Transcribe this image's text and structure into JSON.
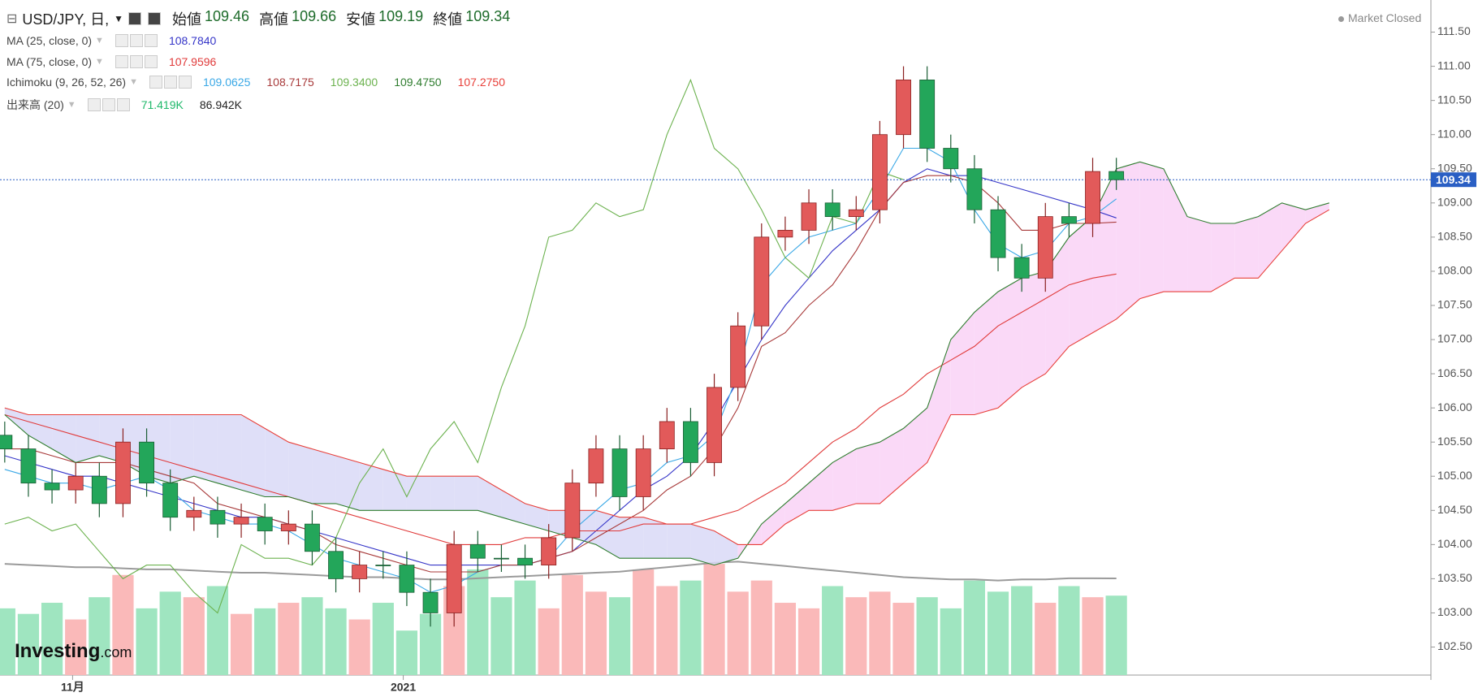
{
  "chart_data": {
    "type": "candlestick",
    "title": "USD/JPY, 日,",
    "ohlc_labels": [
      {
        "label": "始値",
        "value": "109.46"
      },
      {
        "label": "高値",
        "value": "109.66"
      },
      {
        "label": "安値",
        "value": "109.19"
      },
      {
        "label": "終値",
        "value": "109.34"
      }
    ],
    "status": "Market Closed",
    "logo": "Investing",
    "logo_suffix": ".com",
    "up_color": "#e25a5a",
    "down_color": "#23a65a",
    "volume_up_color": "#fab9b9",
    "volume_down_color": "#9fe5c0",
    "price_line_color": "#2a5fc4",
    "x": [
      0,
      1,
      2,
      3,
      4,
      5,
      6,
      7,
      8,
      9,
      10,
      11,
      12,
      13,
      14,
      15,
      16,
      17,
      18,
      19,
      20,
      21,
      22,
      23,
      24,
      25,
      26,
      27,
      28,
      29,
      30,
      31,
      32,
      33,
      34,
      35,
      36,
      37,
      38,
      39,
      40,
      41,
      42,
      43,
      44,
      45,
      46,
      47,
      48,
      49,
      50,
      51,
      52,
      53,
      54,
      55,
      56
    ],
    "xlim": [
      -0.2,
      60.3
    ],
    "xticks": [
      {
        "value": 2.87,
        "label": "11月"
      },
      {
        "value": 16.85,
        "label": "2021"
      }
    ],
    "ylim": [
      102.09,
      111.97
    ],
    "yticks": [
      {
        "value": 102.5,
        "label": "102.50"
      },
      {
        "value": 103,
        "label": "103.00"
      },
      {
        "value": 103.5,
        "label": "103.50"
      },
      {
        "value": 104,
        "label": "104.00"
      },
      {
        "value": 104.5,
        "label": "104.50"
      },
      {
        "value": 105,
        "label": "105.00"
      },
      {
        "value": 105.5,
        "label": "105.50"
      },
      {
        "value": 106,
        "label": "106.00"
      },
      {
        "value": 106.5,
        "label": "106.50"
      },
      {
        "value": 107,
        "label": "107.00"
      },
      {
        "value": 107.5,
        "label": "107.50"
      },
      {
        "value": 108,
        "label": "108.00"
      },
      {
        "value": 108.5,
        "label": "108.50"
      },
      {
        "value": 109,
        "label": "109.00"
      },
      {
        "value": 109.5,
        "label": "109.50"
      },
      {
        "value": 110,
        "label": "110.00"
      },
      {
        "value": 110.5,
        "label": "110.50"
      },
      {
        "value": 111,
        "label": "111.00"
      },
      {
        "value": 111.5,
        "label": "111.50"
      }
    ],
    "open": [
      105.6,
      105.4,
      104.9,
      104.8,
      105.0,
      104.6,
      105.5,
      104.9,
      104.4,
      104.5,
      104.3,
      104.4,
      104.2,
      104.3,
      103.9,
      103.5,
      103.7,
      103.7,
      103.3,
      103.0,
      104.0,
      103.8,
      103.8,
      103.7,
      104.1,
      104.9,
      105.4,
      104.7,
      105.4,
      105.8,
      105.2,
      106.3,
      107.2,
      108.5,
      108.6,
      109.0,
      108.8,
      108.9,
      110.0,
      110.8,
      109.8,
      109.5,
      108.9,
      108.2,
      107.9,
      108.8,
      108.7,
      109.46,
      null,
      null,
      null,
      null,
      null,
      null,
      null,
      null,
      null
    ],
    "high": [
      105.8,
      105.6,
      105.1,
      105.2,
      105.2,
      105.7,
      105.7,
      105.1,
      104.7,
      104.7,
      104.6,
      104.6,
      104.5,
      104.5,
      104.1,
      103.9,
      103.9,
      103.9,
      103.5,
      104.2,
      104.2,
      104.0,
      104.0,
      104.3,
      105.1,
      105.6,
      105.6,
      105.6,
      106.0,
      106.0,
      106.5,
      107.4,
      108.7,
      108.8,
      109.2,
      109.2,
      109.1,
      110.2,
      111.0,
      111.0,
      110.0,
      109.7,
      109.1,
      108.4,
      109.0,
      109.0,
      109.66,
      109.66,
      null,
      null,
      null,
      null,
      null,
      null,
      null,
      null,
      null
    ],
    "low": [
      105.2,
      104.7,
      104.6,
      104.6,
      104.4,
      104.4,
      104.7,
      104.2,
      104.2,
      104.1,
      104.1,
      104.0,
      104.0,
      103.7,
      103.3,
      103.3,
      103.5,
      103.1,
      102.8,
      102.8,
      103.6,
      103.6,
      103.5,
      103.5,
      103.9,
      104.7,
      104.5,
      104.5,
      105.2,
      105.0,
      105.0,
      106.1,
      107.0,
      108.3,
      108.4,
      108.6,
      108.6,
      108.7,
      109.8,
      109.6,
      109.3,
      108.7,
      108.0,
      107.7,
      107.7,
      108.5,
      108.5,
      109.19,
      null,
      null,
      null,
      null,
      null,
      null,
      null,
      null,
      null
    ],
    "close": [
      105.4,
      104.9,
      104.8,
      105.0,
      104.6,
      105.5,
      104.9,
      104.4,
      104.5,
      104.3,
      104.4,
      104.2,
      104.3,
      103.9,
      103.5,
      103.7,
      103.7,
      103.3,
      103.0,
      104.0,
      103.8,
      103.8,
      103.7,
      104.1,
      104.9,
      105.4,
      104.7,
      105.4,
      105.8,
      105.2,
      106.3,
      107.2,
      108.5,
      108.6,
      109.0,
      108.8,
      108.9,
      110.0,
      110.8,
      109.8,
      109.5,
      108.9,
      108.2,
      107.9,
      108.8,
      108.7,
      109.46,
      109.34,
      null,
      null,
      null,
      null,
      null,
      null,
      null,
      null,
      null
    ],
    "volume_lim": [
      0,
      607
    ],
    "volume": [
      60,
      55,
      65,
      50,
      70,
      90,
      60,
      75,
      70,
      80,
      55,
      60,
      65,
      70,
      60,
      50,
      65,
      40,
      55,
      80,
      95,
      70,
      85,
      60,
      90,
      75,
      70,
      95,
      80,
      85,
      100,
      75,
      85,
      65,
      60,
      80,
      70,
      75,
      65,
      70,
      60,
      85,
      75,
      80,
      65,
      80,
      70,
      71.419,
      null,
      null,
      null,
      null,
      null,
      null,
      null,
      null,
      null
    ],
    "volume_ma": [
      100,
      99,
      98,
      97,
      97,
      96,
      95,
      95,
      94,
      93,
      92,
      92,
      91,
      90,
      89,
      88,
      88,
      87,
      86,
      86,
      87,
      88,
      89,
      90,
      91,
      92,
      93,
      95,
      97,
      99,
      101,
      102,
      100,
      98,
      96,
      94,
      92,
      90,
      88,
      87,
      86,
      86,
      85,
      86,
      86,
      87,
      87,
      86.942,
      null,
      null,
      null,
      null,
      null,
      null,
      null,
      null,
      null
    ],
    "volume_ma_color": "#9a9a9a",
    "indicators": [
      {
        "name": "MA (25, close, 0)",
        "values_text": [
          "108.7840"
        ],
        "series": [
          {
            "color": "#3535c8",
            "values": [
              105.3,
              105.2,
              105.1,
              105.0,
              105.0,
              104.9,
              104.8,
              104.7,
              104.6,
              104.5,
              104.4,
              104.4,
              104.3,
              104.2,
              104.1,
              104.0,
              103.9,
              103.8,
              103.7,
              103.7,
              103.7,
              103.7,
              103.7,
              103.8,
              103.9,
              104.2,
              104.5,
              104.8,
              105.0,
              105.3,
              105.8,
              106.4,
              107.0,
              107.5,
              107.9,
              108.3,
              108.6,
              108.9,
              109.3,
              109.5,
              109.4,
              109.4,
              109.3,
              109.2,
              109.1,
              109.0,
              108.9,
              108.78,
              null,
              null,
              null,
              null,
              null,
              null,
              null,
              null,
              null
            ]
          }
        ]
      },
      {
        "name": "MA (75, close, 0)",
        "values_text": [
          "107.9596"
        ],
        "series": [
          {
            "color": "#e03a3a",
            "values": [
              105.9,
              105.8,
              105.7,
              105.6,
              105.5,
              105.4,
              105.3,
              105.2,
              105.1,
              105.0,
              104.9,
              104.8,
              104.7,
              104.6,
              104.5,
              104.4,
              104.3,
              104.2,
              104.1,
              104.0,
              104.0,
              104.0,
              104.1,
              104.1,
              104.2,
              104.2,
              104.2,
              104.3,
              104.3,
              104.3,
              104.4,
              104.5,
              104.7,
              104.9,
              105.2,
              105.5,
              105.7,
              106.0,
              106.2,
              106.5,
              106.7,
              106.9,
              107.2,
              107.4,
              107.6,
              107.8,
              107.9,
              107.96,
              null,
              null,
              null,
              null,
              null,
              null,
              null,
              null,
              null
            ]
          }
        ]
      },
      {
        "name": "Ichimoku (9, 26, 52, 26)",
        "values_text": [
          "109.0625",
          "108.7175",
          "109.3400",
          "109.4750",
          "107.2750"
        ],
        "cloud_up": "#f9d2f6",
        "cloud_down": "#d9d9f7",
        "series": [
          {
            "color": "#3aa8e6",
            "values": [
              105.1,
              105.0,
              104.9,
              104.9,
              104.8,
              104.9,
              105.0,
              104.8,
              104.5,
              104.4,
              104.3,
              104.3,
              104.2,
              104.0,
              103.8,
              103.7,
              103.6,
              103.5,
              103.3,
              103.4,
              103.6,
              103.7,
              103.7,
              103.8,
              104.2,
              104.5,
              104.8,
              104.9,
              105.2,
              105.3,
              105.6,
              106.5,
              107.8,
              108.2,
              108.5,
              108.6,
              108.7,
              109.2,
              109.8,
              109.8,
              109.6,
              108.9,
              108.4,
              108.2,
              108.3,
              108.7,
              108.8,
              109.06,
              null,
              null,
              null,
              null,
              null,
              null,
              null,
              null,
              null
            ]
          },
          {
            "color": "#a83a3a",
            "values": [
              105.4,
              105.4,
              105.3,
              105.2,
              105.2,
              105.2,
              105.1,
              105.0,
              104.9,
              104.6,
              104.5,
              104.4,
              104.3,
              104.2,
              104.0,
              103.9,
              103.8,
              103.7,
              103.6,
              103.6,
              103.6,
              103.7,
              103.7,
              103.8,
              103.9,
              104.1,
              104.3,
              104.5,
              104.8,
              105.0,
              105.4,
              106.0,
              106.9,
              107.1,
              107.5,
              107.8,
              108.3,
              108.9,
              109.3,
              109.4,
              109.4,
              109.3,
              109.0,
              108.6,
              108.6,
              108.7,
              108.7,
              108.72,
              null,
              null,
              null,
              null,
              null,
              null,
              null,
              null,
              null
            ]
          },
          {
            "color": "#6cb24f",
            "values": [
              104.3,
              104.4,
              104.2,
              104.3,
              103.9,
              103.5,
              103.7,
              103.7,
              103.3,
              103.0,
              104.0,
              103.8,
              103.8,
              103.7,
              104.1,
              104.9,
              105.4,
              104.7,
              105.4,
              105.8,
              105.2,
              106.3,
              107.2,
              108.5,
              108.6,
              109.0,
              108.8,
              108.9,
              110.0,
              110.8,
              109.8,
              109.5,
              108.9,
              108.2,
              107.9,
              108.8,
              108.7,
              109.46,
              109.34,
              null,
              null,
              null,
              null,
              null,
              null,
              null,
              null,
              null,
              null,
              null,
              null,
              null,
              null,
              null,
              null,
              null,
              null
            ]
          },
          {
            "color": "#2f7d2f",
            "values": [
              105.9,
              105.6,
              105.4,
              105.2,
              105.3,
              105.2,
              105.0,
              104.9,
              105.0,
              104.9,
              104.8,
              104.7,
              104.7,
              104.6,
              104.6,
              104.5,
              104.5,
              104.5,
              104.5,
              104.5,
              104.5,
              104.4,
              104.3,
              104.2,
              104.1,
              104.0,
              103.8,
              103.8,
              103.8,
              103.8,
              103.7,
              103.8,
              104.3,
              104.6,
              104.9,
              105.2,
              105.4,
              105.5,
              105.7,
              106.0,
              107.0,
              107.4,
              107.7,
              107.9,
              108.0,
              108.5,
              108.8,
              109.5,
              109.6,
              109.5,
              108.8,
              108.7,
              108.7,
              108.8,
              109.0,
              108.9,
              109.0
            ]
          },
          {
            "color": "#e8403a",
            "values": [
              106.0,
              105.9,
              105.9,
              105.9,
              105.9,
              105.9,
              105.9,
              105.9,
              105.9,
              105.9,
              105.9,
              105.7,
              105.5,
              105.4,
              105.3,
              105.2,
              105.1,
              105.0,
              105.0,
              105.0,
              105.0,
              104.8,
              104.6,
              104.5,
              104.5,
              104.5,
              104.4,
              104.4,
              104.3,
              104.3,
              104.2,
              104.0,
              104.0,
              104.3,
              104.5,
              104.5,
              104.6,
              104.6,
              104.9,
              105.2,
              105.9,
              105.9,
              106.0,
              106.3,
              106.5,
              106.9,
              107.1,
              107.3,
              107.6,
              107.7,
              107.7,
              107.7,
              107.9,
              107.9,
              108.3,
              108.7,
              108.9
            ]
          }
        ]
      },
      {
        "name": "出来高 (20)",
        "values_text": [
          "71.419K",
          "86.942K"
        ],
        "values_colors": [
          "#1fb86a",
          "#222222"
        ],
        "series": []
      }
    ]
  }
}
